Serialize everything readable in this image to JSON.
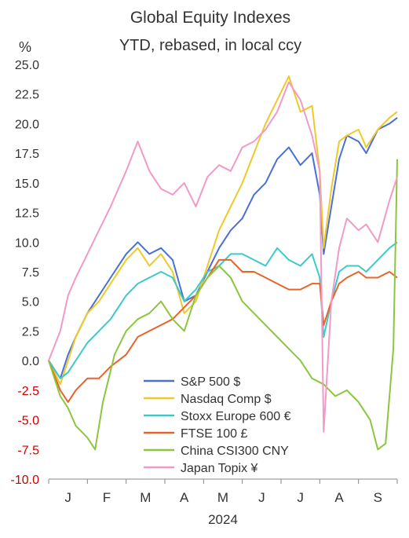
{
  "chart_data": {
    "type": "line",
    "title": "Global Equity Indexes",
    "subtitle": "YTD, rebased, in local ccy",
    "ylabel": "%",
    "xlabel": "2024",
    "ylim": [
      -10,
      25
    ],
    "yticks": [
      "25.0",
      "22.5",
      "20.0",
      "17.5",
      "15.0",
      "12.5",
      "10.0",
      "7.5",
      "5.0",
      "2.5",
      "0.0",
      "-2.5",
      "-5.0",
      "-7.5",
      "-10.0"
    ],
    "negative_tick_color": "#cc0000",
    "x_domain": [
      0,
      9
    ],
    "x_months": [
      "J",
      "F",
      "M",
      "A",
      "M",
      "J",
      "J",
      "A",
      "S"
    ],
    "grid": false,
    "legend_position": "bottom-center",
    "series": [
      {
        "name": "S&P 500 $",
        "color": "#4a6fd6",
        "x": [
          0,
          0.3,
          0.5,
          0.7,
          1.0,
          1.3,
          1.6,
          2.0,
          2.3,
          2.6,
          2.9,
          3.2,
          3.5,
          3.8,
          4.1,
          4.4,
          4.7,
          5.0,
          5.3,
          5.6,
          5.9,
          6.2,
          6.5,
          6.8,
          7.0,
          7.1,
          7.3,
          7.5,
          7.7,
          8.0,
          8.2,
          8.5,
          8.8,
          9.0
        ],
        "y": [
          0.0,
          -1.5,
          0.5,
          2.0,
          4.0,
          5.5,
          7.0,
          9.0,
          10.0,
          9.0,
          9.5,
          8.5,
          5.0,
          5.5,
          7.5,
          9.5,
          11.0,
          12.0,
          14.0,
          15.0,
          17.0,
          18.0,
          16.5,
          17.5,
          14.0,
          9.0,
          13.0,
          17.0,
          19.0,
          18.5,
          17.5,
          19.5,
          20.0,
          20.5
        ]
      },
      {
        "name": "Nasdaq Comp $",
        "color": "#f0c829",
        "x": [
          0,
          0.3,
          0.5,
          0.7,
          1.0,
          1.3,
          1.6,
          2.0,
          2.3,
          2.6,
          2.9,
          3.2,
          3.5,
          3.8,
          4.1,
          4.4,
          4.7,
          5.0,
          5.3,
          5.6,
          5.9,
          6.2,
          6.5,
          6.8,
          7.0,
          7.1,
          7.3,
          7.5,
          7.7,
          8.0,
          8.2,
          8.5,
          8.8,
          9.0
        ],
        "y": [
          0.0,
          -2.0,
          0.0,
          2.0,
          4.0,
          5.0,
          6.5,
          8.5,
          9.5,
          8.0,
          9.0,
          7.5,
          4.0,
          5.0,
          8.0,
          11.0,
          13.0,
          15.0,
          17.5,
          20.0,
          22.0,
          24.0,
          21.0,
          21.5,
          16.0,
          9.5,
          14.5,
          18.5,
          19.0,
          19.5,
          18.0,
          19.5,
          20.5,
          21.0
        ]
      },
      {
        "name": "Stoxx Europe 600 €",
        "color": "#3ec9c9",
        "x": [
          0,
          0.3,
          0.5,
          0.7,
          1.0,
          1.3,
          1.6,
          2.0,
          2.3,
          2.6,
          2.9,
          3.2,
          3.5,
          3.8,
          4.1,
          4.4,
          4.7,
          5.0,
          5.3,
          5.6,
          5.9,
          6.2,
          6.5,
          6.8,
          7.0,
          7.1,
          7.3,
          7.5,
          7.7,
          8.0,
          8.2,
          8.5,
          8.8,
          9.0
        ],
        "y": [
          0.0,
          -1.5,
          -1.0,
          0.0,
          1.5,
          2.5,
          3.5,
          5.5,
          6.5,
          7.0,
          7.5,
          7.0,
          5.0,
          6.0,
          7.5,
          8.0,
          9.0,
          9.0,
          8.5,
          8.0,
          9.5,
          8.5,
          8.0,
          9.0,
          7.0,
          2.0,
          5.0,
          7.5,
          8.0,
          8.0,
          7.5,
          8.5,
          9.5,
          10.0
        ]
      },
      {
        "name": "FTSE 100 £",
        "color": "#e8632a",
        "x": [
          0,
          0.3,
          0.5,
          0.7,
          1.0,
          1.3,
          1.6,
          2.0,
          2.3,
          2.6,
          2.9,
          3.2,
          3.5,
          3.8,
          4.1,
          4.4,
          4.7,
          5.0,
          5.3,
          5.6,
          5.9,
          6.2,
          6.5,
          6.8,
          7.0,
          7.1,
          7.3,
          7.5,
          7.7,
          8.0,
          8.2,
          8.5,
          8.8,
          9.0
        ],
        "y": [
          0.0,
          -2.5,
          -3.5,
          -2.5,
          -1.5,
          -1.5,
          -0.5,
          0.5,
          2.0,
          2.5,
          3.0,
          3.5,
          4.5,
          5.5,
          7.0,
          8.5,
          8.5,
          7.5,
          7.5,
          7.0,
          6.5,
          6.0,
          6.0,
          6.5,
          6.5,
          3.0,
          5.0,
          6.5,
          7.0,
          7.5,
          7.0,
          7.0,
          7.5,
          7.0
        ]
      },
      {
        "name": "China CSI300 CNY",
        "color": "#8cc63e",
        "x": [
          0,
          0.3,
          0.5,
          0.7,
          1.0,
          1.2,
          1.4,
          1.7,
          2.0,
          2.3,
          2.6,
          2.9,
          3.2,
          3.5,
          3.8,
          4.1,
          4.4,
          4.7,
          5.0,
          5.3,
          5.6,
          5.9,
          6.2,
          6.5,
          6.8,
          7.1,
          7.4,
          7.7,
          8.0,
          8.3,
          8.5,
          8.7,
          8.9,
          9.0
        ],
        "y": [
          0.0,
          -3.0,
          -4.0,
          -5.5,
          -6.5,
          -7.5,
          -3.5,
          0.5,
          2.5,
          3.5,
          4.0,
          5.0,
          3.5,
          2.5,
          5.5,
          7.0,
          8.0,
          7.0,
          5.0,
          4.0,
          3.0,
          2.0,
          1.0,
          0.0,
          -1.5,
          -2.0,
          -3.0,
          -2.5,
          -3.5,
          -5.0,
          -7.5,
          -7.0,
          1.0,
          17.0
        ]
      },
      {
        "name": "Japan Topix ¥",
        "color": "#f29ac7",
        "x": [
          0,
          0.3,
          0.5,
          0.7,
          1.0,
          1.3,
          1.6,
          2.0,
          2.3,
          2.6,
          2.9,
          3.2,
          3.5,
          3.8,
          4.1,
          4.4,
          4.7,
          5.0,
          5.3,
          5.6,
          5.9,
          6.2,
          6.5,
          6.8,
          7.0,
          7.1,
          7.3,
          7.5,
          7.7,
          8.0,
          8.2,
          8.5,
          8.8,
          9.0
        ],
        "y": [
          0.0,
          2.5,
          5.5,
          7.0,
          9.0,
          11.0,
          13.0,
          16.0,
          18.5,
          16.0,
          14.5,
          14.0,
          15.0,
          13.0,
          15.5,
          16.5,
          16.0,
          18.0,
          18.5,
          19.5,
          21.0,
          23.5,
          22.0,
          19.0,
          16.0,
          -6.0,
          5.0,
          9.5,
          12.0,
          11.0,
          11.5,
          10.0,
          13.5,
          15.5
        ]
      }
    ]
  }
}
